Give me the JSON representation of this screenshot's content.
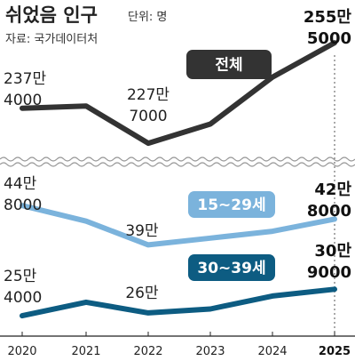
{
  "title": "쉬었음 인구",
  "unit": "단위: 명",
  "source": "자료: 국가데이터처",
  "colors": {
    "total": "#333333",
    "youth": "#7bb3dc",
    "thirties": "#0d5c82",
    "axis": "#555555",
    "break": "#999999"
  },
  "chart_data": [
    {
      "type": "line",
      "x": [
        "2020",
        "2021",
        "2022",
        "2023",
        "2024",
        "2025"
      ],
      "series": [
        {
          "name": "전체",
          "values": [
            2374000,
            2380000,
            2277000,
            2330000,
            2460000,
            2555000
          ],
          "labels": {
            "0": [
              "237만",
              "4000"
            ],
            "2": [
              "227만",
              "7000"
            ],
            "5": [
              "255만",
              "5000"
            ]
          }
        },
        {
          "name": "15~29세",
          "values": [
            448000,
            425000,
            390000,
            400000,
            410000,
            428000
          ],
          "labels": {
            "0": [
              "44만",
              "8000"
            ],
            "2": [
              "39만"
            ],
            "5": [
              "42만",
              "8000"
            ]
          }
        },
        {
          "name": "30~39세",
          "values": [
            254000,
            282000,
            260000,
            268000,
            295000,
            309000
          ],
          "labels": {
            "0": [
              "25만",
              "4000"
            ],
            "2": [
              "26만"
            ],
            "5": [
              "30만",
              "9000"
            ]
          }
        }
      ]
    }
  ]
}
